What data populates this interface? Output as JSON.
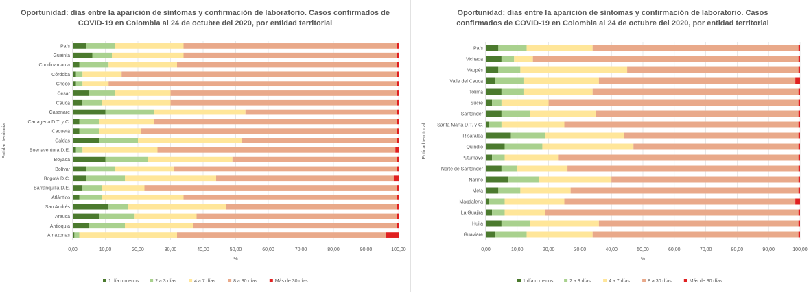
{
  "legend_labels": [
    "1 día o menos",
    "2 a 3 días",
    "4 a 7 días",
    "8 a 30 días",
    "Más de 30 días"
  ],
  "series_colors": [
    "#4b7a2e",
    "#a9d18e",
    "#ffe699",
    "#e9a98a",
    "#e02020"
  ],
  "chart_data": [
    {
      "type": "bar",
      "orientation": "horizontal",
      "stacked": true,
      "title": "Oportunidad: días entre la aparición de síntomas y confirmación de laboratorio. Casos confirmados de COVID-19 en Colombia al 24 de octubre del 2020, por entidad territorial",
      "xlabel": "%",
      "ylabel": "Entidad territorial",
      "xlim": [
        0,
        100
      ],
      "xticks": [
        "0,00",
        "10,00",
        "20,00",
        "30,00",
        "40,00",
        "50,00",
        "60,00",
        "70,00",
        "80,00",
        "90,00",
        "100,00"
      ],
      "legend_position": "bottom",
      "categories": [
        "Amazonas",
        "Antioquia",
        "Arauca",
        "San Andrés",
        "Atlántico",
        "Barranquilla D.E.",
        "Bogotá D.C.",
        "Bolívar",
        "Boyacá",
        "Buenaventura D.E.",
        "Caldas",
        "Caquetá",
        "Cartagena D.T. y C.",
        "Casanare",
        "Cauca",
        "Cesar",
        "Chocó",
        "Córdoba",
        "Cundinamarca",
        "Guainía",
        "País"
      ],
      "series": [
        {
          "name": "1 día o menos",
          "values": [
            0.5,
            5,
            8,
            11,
            2,
            3,
            4,
            4,
            10,
            1,
            8,
            2,
            2,
            10,
            3,
            5,
            1,
            1,
            2,
            6,
            4
          ]
        },
        {
          "name": "2 a 3 días",
          "values": [
            1.5,
            11,
            11,
            6,
            7,
            6,
            12,
            9,
            13,
            2,
            12,
            6,
            6,
            15,
            6,
            8,
            2,
            2,
            9,
            6,
            9
          ]
        },
        {
          "name": "4 a 7 días",
          "values": [
            30,
            21,
            19,
            30,
            25,
            13,
            28,
            18,
            26,
            23,
            32,
            13,
            17,
            28,
            21,
            17,
            8,
            12,
            21,
            22,
            21
          ]
        },
        {
          "name": "8 a 30 días",
          "values": [
            64,
            62.5,
            61.5,
            52.5,
            65.5,
            77.5,
            54.5,
            68.5,
            50.5,
            73,
            47.5,
            78.5,
            74.5,
            46.5,
            69.5,
            69.5,
            88.5,
            84.5,
            67.5,
            65.5,
            65.5
          ]
        },
        {
          "name": "Más de 30 días",
          "values": [
            4,
            0.5,
            0.5,
            0.5,
            0.5,
            0.5,
            1.5,
            0.5,
            0.5,
            1,
            0.5,
            0.5,
            0.5,
            0.5,
            0.5,
            0.5,
            0.5,
            0.5,
            0.5,
            0.5,
            0.5
          ]
        }
      ]
    },
    {
      "type": "bar",
      "orientation": "horizontal",
      "stacked": true,
      "title": "Oportunidad: días entre la aparición de síntomas y confirmación de laboratorio. Casos confirmados de COVID-19 en Colombia al 24 de octubre del 2020, por entidad territorial",
      "xlabel": "%",
      "ylabel": "Entidad territorial",
      "xlim": [
        0,
        100
      ],
      "xticks": [
        "0,00",
        "10,00",
        "20,00",
        "30,00",
        "40,00",
        "50,00",
        "60,00",
        "70,00",
        "80,00",
        "90,00",
        "100,00"
      ],
      "legend_position": "bottom",
      "categories": [
        "Guaviare",
        "Huila",
        "La Guajira",
        "Magdalena",
        "Meta",
        "Nariño",
        "Norte de Santander",
        "Putumayo",
        "Quindío",
        "Risaralda",
        "Santa Marta D.T. y C.",
        "Santander",
        "Sucre",
        "Tolima",
        "Valle del Cauca",
        "Vaupés",
        "Vichada",
        "País"
      ],
      "series": [
        {
          "name": "1 día o menos",
          "values": [
            3,
            5,
            2,
            1,
            4,
            7,
            5,
            2,
            6,
            8,
            1,
            5,
            2,
            5,
            3,
            4,
            5,
            4
          ]
        },
        {
          "name": "2 a 3 días",
          "values": [
            10,
            9,
            4,
            5,
            7,
            10,
            5,
            4,
            12,
            11,
            4,
            9,
            3,
            7,
            9,
            7,
            4,
            9
          ]
        },
        {
          "name": "4 a 7 días",
          "values": [
            21,
            22,
            13,
            19,
            16,
            23,
            16,
            17,
            29,
            25,
            20,
            21,
            15,
            22,
            24,
            34,
            6,
            21
          ]
        },
        {
          "name": "8 a 30 días",
          "values": [
            65.5,
            63.5,
            80.5,
            73.5,
            72.5,
            59.5,
            73.5,
            76.5,
            52.5,
            55.5,
            74.5,
            64.5,
            79.5,
            65.5,
            62.5,
            54.5,
            84.5,
            65.5
          ]
        },
        {
          "name": "Más de 30 días",
          "values": [
            0.5,
            0.5,
            0.5,
            1.5,
            0.5,
            0.5,
            0.5,
            0.5,
            0.5,
            0.5,
            0.5,
            0.5,
            0.5,
            0.5,
            1.5,
            0.5,
            0.5,
            0.5
          ]
        }
      ]
    }
  ]
}
